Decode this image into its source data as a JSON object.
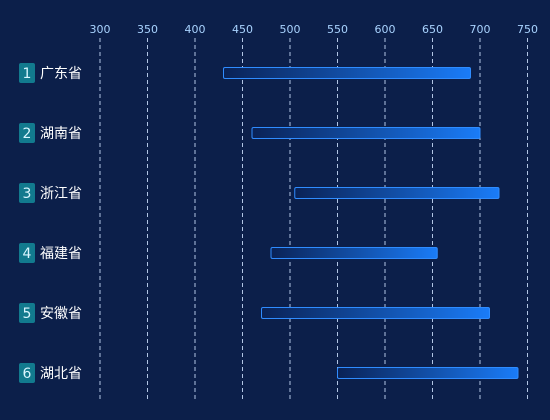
{
  "chart_data": {
    "type": "bar",
    "orientation": "horizontal",
    "categories": [
      "广东省",
      "湖南省",
      "浙江省",
      "福建省",
      "安徽省",
      "湖北省"
    ],
    "ranks": [
      "1",
      "2",
      "3",
      "4",
      "5",
      "6"
    ],
    "ranges": [
      [
        430,
        690
      ],
      [
        460,
        700
      ],
      [
        505,
        720
      ],
      [
        480,
        655
      ],
      [
        470,
        710
      ],
      [
        550,
        740
      ]
    ],
    "x_ticks": [
      300,
      350,
      400,
      450,
      500,
      550,
      600,
      650,
      700,
      750
    ],
    "xlim": [
      300,
      750
    ],
    "title": "",
    "xlabel": "",
    "ylabel": "",
    "grid": "vertical-dashed",
    "legend": "none"
  },
  "colors": {
    "background": "#0c1f4a",
    "bar_start": "#0a2256",
    "bar_end": "#1a7cf8",
    "bar_border": "#2f8cff",
    "rank_badge": "#127a8e",
    "tick_label": "#a9d3ff",
    "grid": "#cfe3ff"
  }
}
